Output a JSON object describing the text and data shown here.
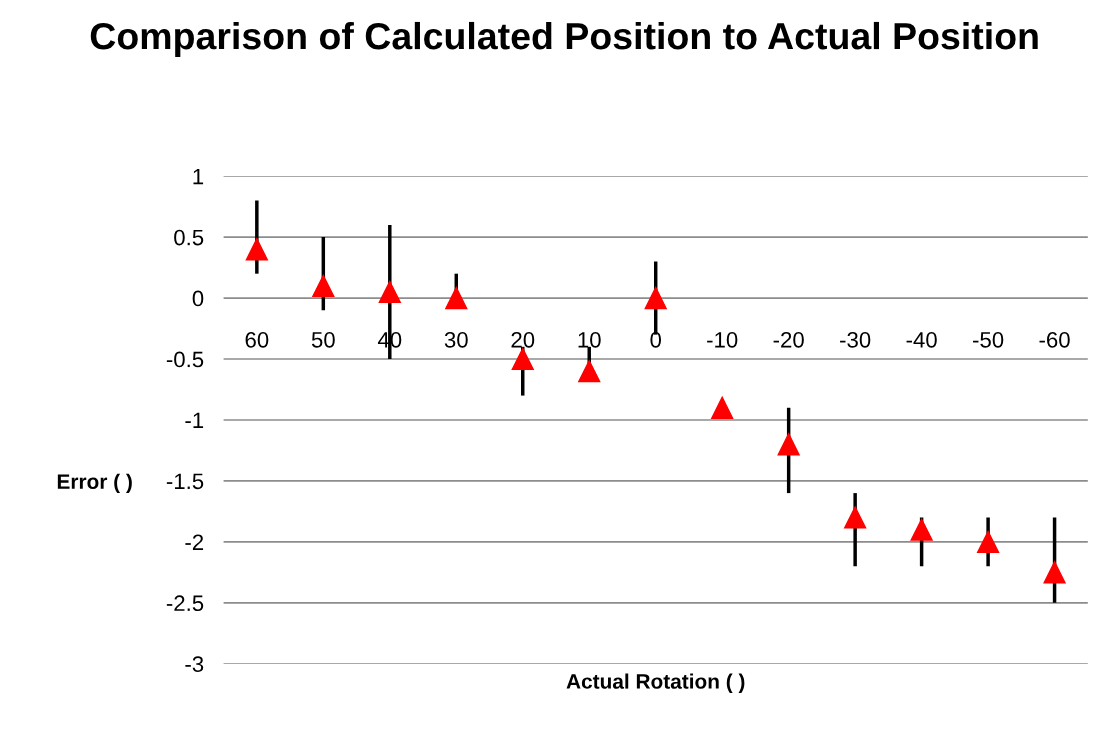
{
  "chart_data": {
    "type": "scatter",
    "title": "Comparison of Calculated Position to Actual Position",
    "xlabel": "Actual Rotation ( )",
    "ylabel": "Error ( )",
    "categories": [
      "60",
      "50",
      "40",
      "30",
      "20",
      "10",
      "0",
      "-10",
      "-20",
      "-30",
      "-40",
      "-50",
      "-60"
    ],
    "series": [
      {
        "color": "#ff0000",
        "values": [
          0.4,
          0.1,
          0.05,
          0,
          -0.5,
          -0.6,
          0,
          -0.9,
          -1.2,
          -1.8,
          -1.9,
          -2.0,
          -2.25
        ],
        "errors": [
          [
            0.2,
            0.8
          ],
          [
            -0.1,
            0.5
          ],
          [
            -0.5,
            0.6
          ],
          [
            0,
            0.2
          ],
          [
            -0.8,
            -0.4
          ],
          [
            -0.6,
            -0.4
          ],
          [
            -0.3,
            0.3
          ],
          null,
          [
            -1.6,
            -0.9
          ],
          [
            -2.2,
            -1.6
          ],
          [
            -2.2,
            -1.8
          ],
          [
            -2.2,
            -1.8
          ],
          [
            -2.5,
            -1.8
          ]
        ]
      }
    ],
    "ylim": [
      -3,
      1
    ],
    "yticks": [
      -3,
      -2.5,
      -2,
      -1.5,
      -1,
      -0.5,
      0,
      0.5,
      1
    ],
    "grid": "y",
    "marker": "triangle"
  }
}
